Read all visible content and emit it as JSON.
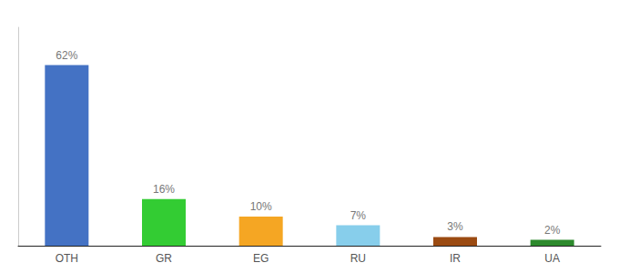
{
  "chart_data": {
    "type": "bar",
    "categories": [
      "OTH",
      "GR",
      "EG",
      "RU",
      "IR",
      "UA"
    ],
    "values": [
      62,
      16,
      10,
      7,
      3,
      2
    ],
    "value_labels": [
      "62%",
      "16%",
      "10%",
      "7%",
      "3%",
      "2%"
    ],
    "colors": [
      "#4472c4",
      "#33cc33",
      "#f5a623",
      "#87ceeb",
      "#9b4b12",
      "#2d8a2d"
    ],
    "ylim": [
      0,
      75
    ],
    "yticks": [],
    "grid": false,
    "data_labels": true,
    "tick_labels": "x"
  }
}
